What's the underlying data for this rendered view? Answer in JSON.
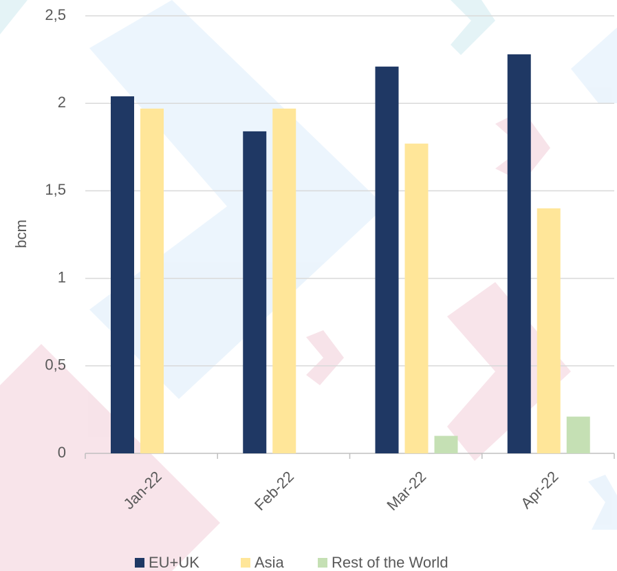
{
  "chart_data": {
    "type": "bar",
    "y_label": "bcm",
    "categories": [
      "Jan-22",
      "Feb-22",
      "Mar-22",
      "Apr-22"
    ],
    "series": [
      {
        "name": "EU+UK",
        "color": "#1f3864",
        "values": [
          2.04,
          1.84,
          2.21,
          2.28
        ]
      },
      {
        "name": "Asia",
        "color": "#ffe699",
        "values": [
          1.97,
          1.97,
          1.77,
          1.4
        ]
      },
      {
        "name": "Rest of the World",
        "color": "#c5e0b4",
        "values": [
          null,
          null,
          0.1,
          0.21
        ]
      }
    ],
    "ylim": [
      0,
      2.5
    ],
    "yticks": [
      0,
      {
        "value": 0.5,
        "label": "0,5"
      },
      1,
      {
        "value": 1.5,
        "label": "1,5"
      },
      2,
      {
        "value": 2.5,
        "label": "2,5"
      }
    ],
    "grid": true,
    "legend": "bottom"
  }
}
